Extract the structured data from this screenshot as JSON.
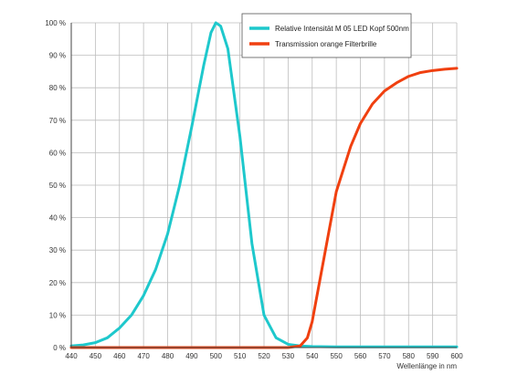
{
  "chart_data": {
    "type": "line",
    "xlabel": "Wellenlänge in nm",
    "ylabel": "",
    "xlim": [
      440,
      600
    ],
    "ylim": [
      0,
      100
    ],
    "x_ticks": [
      440,
      450,
      460,
      470,
      480,
      490,
      500,
      510,
      520,
      530,
      540,
      550,
      560,
      570,
      580,
      590,
      600
    ],
    "y_ticks": [
      0,
      10,
      20,
      30,
      40,
      50,
      60,
      70,
      80,
      90,
      100
    ],
    "y_tick_labels": [
      "0 %",
      "10 %",
      "20 %",
      "30 %",
      "40 %",
      "50 %",
      "60 %",
      "70 %",
      "80 %",
      "90 %",
      "100 %"
    ],
    "grid": true,
    "legend_position": "top-right",
    "series": [
      {
        "name": "Relative Intensität M 05 LED Kopf 500nm",
        "color": "#1ec8cc",
        "x": [
          440,
          445,
          450,
          455,
          460,
          465,
          470,
          475,
          480,
          485,
          490,
          495,
          498,
          500,
          502,
          505,
          510,
          515,
          520,
          525,
          530,
          535,
          540,
          550,
          560,
          570,
          580,
          590,
          600
        ],
        "y": [
          0.5,
          0.8,
          1.5,
          3,
          6,
          10,
          16,
          24,
          35,
          50,
          68,
          87,
          97,
          100,
          99,
          92,
          65,
          32,
          10,
          3,
          1,
          0.5,
          0.3,
          0.2,
          0.2,
          0.2,
          0.2,
          0.2,
          0.2
        ]
      },
      {
        "name": "Transmission orange Filterbrille",
        "color": "#f04010",
        "x": [
          440,
          460,
          480,
          500,
          520,
          530,
          535,
          538,
          540,
          542,
          545,
          548,
          550,
          553,
          556,
          560,
          565,
          570,
          575,
          580,
          585,
          590,
          595,
          600
        ],
        "y": [
          0,
          0,
          0,
          0,
          0,
          0,
          0.5,
          3,
          8,
          16,
          28,
          40,
          48,
          55,
          62,
          69,
          75,
          79,
          81.5,
          83.5,
          84.7,
          85.3,
          85.7,
          86
        ]
      }
    ]
  }
}
